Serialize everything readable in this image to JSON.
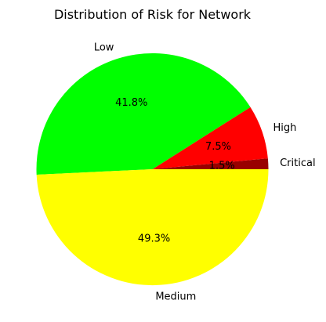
{
  "chart_data": {
    "type": "pie",
    "title": "Distribution of Risk for Network",
    "start_angle_deg": 0,
    "direction": "counterclockwise",
    "slices": [
      {
        "label": "Critical",
        "value": 1.5,
        "pct_label": "1.5%",
        "color": "#990000"
      },
      {
        "label": "High",
        "value": 7.5,
        "pct_label": "7.5%",
        "color": "#ff0000"
      },
      {
        "label": "Low",
        "value": 41.8,
        "pct_label": "41.8%",
        "color": "#00ff00"
      },
      {
        "label": "Medium",
        "value": 49.3,
        "pct_label": "49.3%",
        "color": "#ffff00"
      }
    ]
  }
}
